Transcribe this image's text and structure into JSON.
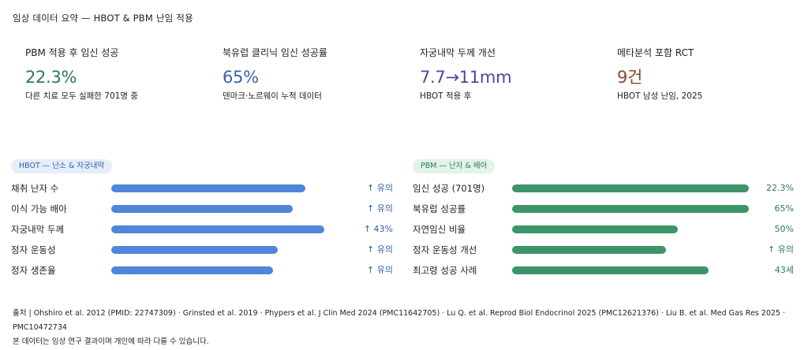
{
  "page_title": "임상 데이터 요약 — HBOT & PBM 난임 적용",
  "stats": [
    {
      "label": "PBM 적용 후 임신 성공",
      "value": "22.3%",
      "sub": "다른 치료 모두 실패한 701명 중",
      "color": "#2e7a57"
    },
    {
      "label": "북유럽 클리닉 임신 성공률",
      "value": "65%",
      "sub": "덴마크·노르웨이 누적 데이터",
      "color": "#3a62a8"
    },
    {
      "label": "자궁내막 두께 개선",
      "value": "7.7→11mm",
      "sub": "HBOT 적용 후",
      "color": "#5246a0"
    },
    {
      "label": "메타분석 포함 RCT",
      "value": "9건",
      "sub": "HBOT 남성 난임, 2025",
      "color": "#8a4a2a"
    }
  ],
  "hbot": {
    "tag": "HBOT — 난소 & 자궁내막",
    "tag_bg": "#e6eefa",
    "tag_fg": "#2f5ea8",
    "bar_color": "#4f86d9",
    "value_color": "#2f5ea8",
    "rows": [
      {
        "label": "채취 난자 수",
        "value": "↑ 유의",
        "level": 0.91
      },
      {
        "label": "이식 가능 배아",
        "value": "↑ 유의",
        "level": 0.85
      },
      {
        "label": "자궁내막 두께",
        "value": "↑ 43%",
        "level": 1.0
      },
      {
        "label": "정자 운동성",
        "value": "↑ 유의",
        "level": 0.78
      },
      {
        "label": "정자 생존율",
        "value": "↑ 유의",
        "level": 0.76
      }
    ]
  },
  "pbm": {
    "tag": "PBM — 난자 & 배아",
    "tag_bg": "#e3f3ea",
    "tag_fg": "#2e7a57",
    "bar_color": "#3d9468",
    "value_color": "#2e7a57",
    "rows": [
      {
        "label": "임신 성공 (701명)",
        "value": "22.3%",
        "level": 1.0
      },
      {
        "label": "북유럽 성공률",
        "value": "65%",
        "level": 1.0
      },
      {
        "label": "자연임신 비율",
        "value": "50%",
        "level": 0.7
      },
      {
        "label": "정자 운동성 개선",
        "value": "↑ 유의",
        "level": 0.65
      },
      {
        "label": "최고령 성공 사례",
        "value": "43세",
        "level": 0.83
      }
    ]
  },
  "footer": {
    "line1": "출처 | Ohshiro et al. 2012 (PMID: 22747309) · Grinsted et al. 2019 · Phypers et al. J Clin Med 2024 (PMC11642705) · Lu Q. et al. Reprod Biol Endocrinol 2025 (PMC12621376) · Liu B. et al. Med Gas Res 2025 · PMC10472734",
    "line2": "본 데이터는 임상 연구 결과이며 개인에 따라 다를 수 있습니다."
  }
}
